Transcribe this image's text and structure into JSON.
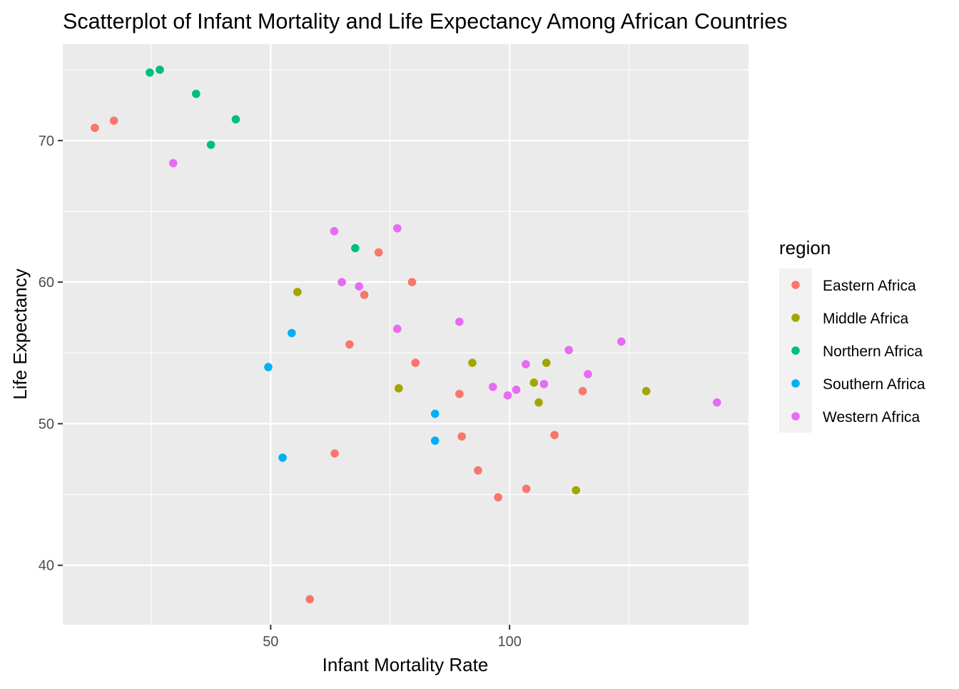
{
  "chart_data": {
    "type": "scatter",
    "title": "Scatterplot of Infant Mortality and Life Expectancy Among African Countries",
    "xlabel": "Infant Mortality Rate",
    "ylabel": "Life Expectancy",
    "xlim": [
      6.5,
      150
    ],
    "ylim": [
      35.8,
      76.8
    ],
    "x_ticks": [
      50,
      100
    ],
    "y_ticks": [
      40,
      50,
      60,
      70
    ],
    "x_tick_labels": [
      "50",
      "100"
    ],
    "y_tick_labels": [
      "40",
      "50",
      "60",
      "70"
    ],
    "grid": true,
    "legend": {
      "title": "region",
      "position": "right"
    },
    "series": [
      {
        "name": "Eastern Africa",
        "color": "#F8766D",
        "points": [
          {
            "x": 13.2,
            "y": 70.9
          },
          {
            "x": 17.2,
            "y": 71.4
          },
          {
            "x": 72.6,
            "y": 62.1
          },
          {
            "x": 79.6,
            "y": 60.0
          },
          {
            "x": 69.6,
            "y": 59.1
          },
          {
            "x": 66.5,
            "y": 55.6
          },
          {
            "x": 80.3,
            "y": 54.3
          },
          {
            "x": 89.5,
            "y": 52.1
          },
          {
            "x": 115.3,
            "y": 52.3
          },
          {
            "x": 90.0,
            "y": 49.1
          },
          {
            "x": 109.4,
            "y": 49.2
          },
          {
            "x": 63.4,
            "y": 47.9
          },
          {
            "x": 93.4,
            "y": 46.7
          },
          {
            "x": 103.5,
            "y": 45.4
          },
          {
            "x": 97.6,
            "y": 44.8
          },
          {
            "x": 58.2,
            "y": 37.6
          }
        ]
      },
      {
        "name": "Middle Africa",
        "color": "#A3A500",
        "points": [
          {
            "x": 55.6,
            "y": 59.3
          },
          {
            "x": 92.2,
            "y": 54.3
          },
          {
            "x": 107.7,
            "y": 54.3
          },
          {
            "x": 76.8,
            "y": 52.5
          },
          {
            "x": 105.1,
            "y": 52.9
          },
          {
            "x": 106.1,
            "y": 51.5
          },
          {
            "x": 128.6,
            "y": 52.3
          },
          {
            "x": 113.9,
            "y": 45.3
          }
        ]
      },
      {
        "name": "Northern Africa",
        "color": "#00BF7D",
        "points": [
          {
            "x": 24.7,
            "y": 74.8
          },
          {
            "x": 26.8,
            "y": 75.0
          },
          {
            "x": 34.4,
            "y": 73.3
          },
          {
            "x": 42.7,
            "y": 71.5
          },
          {
            "x": 37.5,
            "y": 69.7
          },
          {
            "x": 67.7,
            "y": 62.4
          }
        ]
      },
      {
        "name": "Southern Africa",
        "color": "#00B0F6",
        "points": [
          {
            "x": 54.4,
            "y": 56.4
          },
          {
            "x": 49.5,
            "y": 54.0
          },
          {
            "x": 84.4,
            "y": 50.7
          },
          {
            "x": 84.4,
            "y": 48.8
          },
          {
            "x": 52.5,
            "y": 47.6
          }
        ]
      },
      {
        "name": "Western Africa",
        "color": "#E76BF3",
        "points": [
          {
            "x": 29.6,
            "y": 68.4
          },
          {
            "x": 63.3,
            "y": 63.6
          },
          {
            "x": 76.5,
            "y": 63.8
          },
          {
            "x": 64.9,
            "y": 60.0
          },
          {
            "x": 68.5,
            "y": 59.7
          },
          {
            "x": 76.5,
            "y": 56.7
          },
          {
            "x": 89.5,
            "y": 57.2
          },
          {
            "x": 123.4,
            "y": 55.8
          },
          {
            "x": 112.4,
            "y": 55.2
          },
          {
            "x": 103.4,
            "y": 54.2
          },
          {
            "x": 116.4,
            "y": 53.5
          },
          {
            "x": 96.5,
            "y": 52.6
          },
          {
            "x": 101.4,
            "y": 52.4
          },
          {
            "x": 99.6,
            "y": 52.0
          },
          {
            "x": 107.2,
            "y": 52.8
          },
          {
            "x": 143.4,
            "y": 51.5
          }
        ]
      }
    ]
  }
}
